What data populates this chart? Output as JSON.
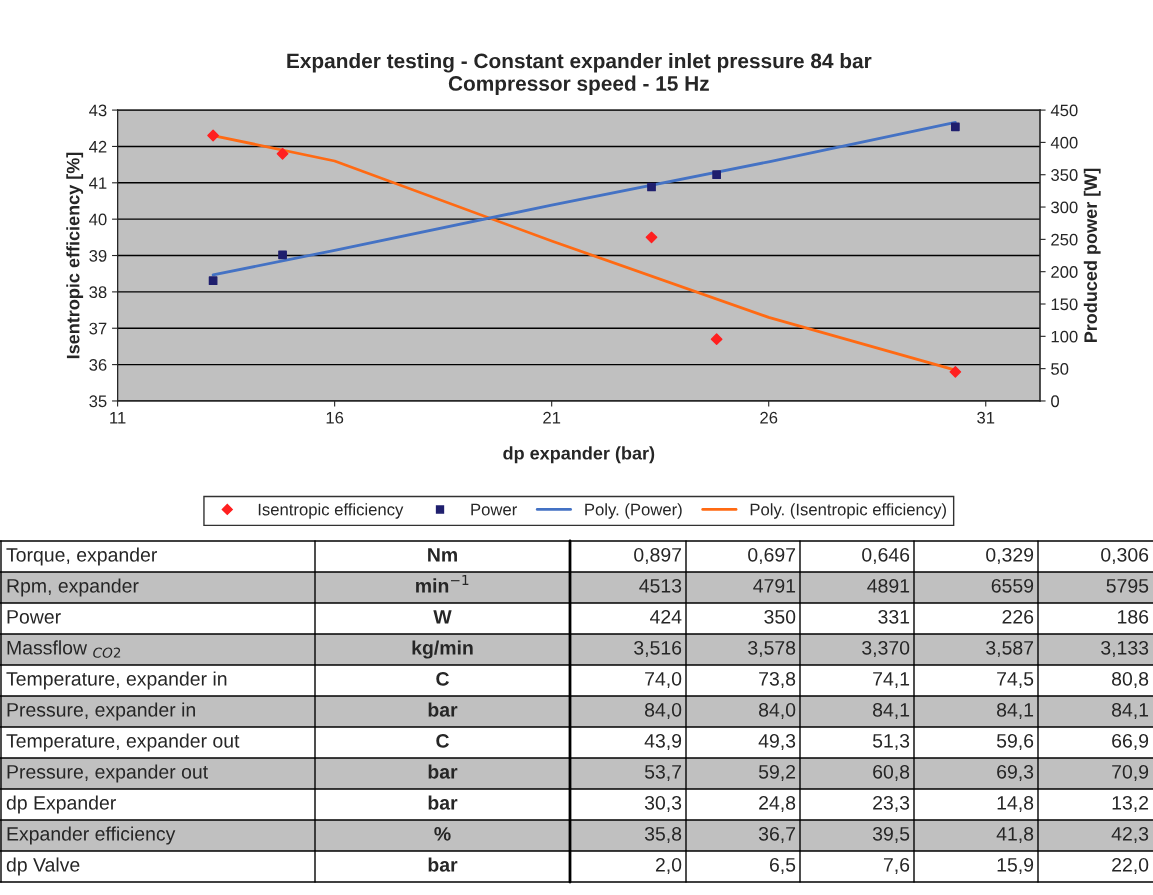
{
  "chart_data": {
    "type": "scatter",
    "title": "Expander testing - Constant expander inlet pressure 84 bar\nCompressor speed - 15 Hz",
    "xlabel": "dp expander (bar)",
    "ylabel": "Isentropic efficiency [%]",
    "y2label": "Produced power [W]",
    "xlim": [
      11,
      32.25
    ],
    "xticks": [
      11,
      16,
      21,
      26,
      31
    ],
    "ylim": [
      35,
      43
    ],
    "yticks": [
      35,
      36,
      37,
      38,
      39,
      40,
      41,
      42,
      43
    ],
    "y2lim": [
      0,
      450
    ],
    "y2ticks": [
      0,
      50,
      100,
      150,
      200,
      250,
      300,
      350,
      400,
      450
    ],
    "grid": "y",
    "legend": "bottom",
    "series": [
      {
        "name": "Isentropic efficiency",
        "marker": "diamond",
        "color": "#ff2020",
        "x": [
          13.2,
          14.8,
          23.3,
          24.8,
          30.3
        ],
        "values": [
          42.3,
          41.8,
          39.5,
          36.7,
          35.8
        ]
      },
      {
        "name": "Power",
        "marker": "square",
        "color": "#1f1f6e",
        "axis": "y2",
        "x": [
          13.2,
          14.8,
          23.3,
          24.8,
          30.3
        ],
        "values": [
          186,
          226,
          331,
          350,
          424
        ]
      },
      {
        "name": "Poly. (Power)",
        "type": "line",
        "marker": "none",
        "color": "#4472c4",
        "axis": "y2",
        "x": [
          13.2,
          16,
          21,
          26,
          30.3
        ],
        "values": [
          195,
          233,
          303,
          370,
          431
        ]
      },
      {
        "name": "Poly. (Isentropic efficiency)",
        "type": "line",
        "marker": "none",
        "color": "#ff6a13",
        "x": [
          13.2,
          16,
          21,
          26,
          30.3
        ],
        "values": [
          42.3,
          41.6,
          39.4,
          37.3,
          35.85
        ]
      }
    ],
    "annotations": [
      "Torque, expander",
      "Nm",
      "0,897",
      "0,697",
      "0,646",
      "0,329",
      "0,306",
      "Rpm, expander",
      "min$^{−1}$",
      "4513",
      "4791",
      "4891",
      "6559",
      "5795",
      "Power",
      "W",
      "424",
      "350",
      "331",
      "226",
      "186",
      "Massflow $_{CO2}$",
      "kg/min",
      "3,516",
      "3,578",
      "3,370",
      "3,587",
      "3,133",
      "Temperature, expander in",
      "C",
      "74,0",
      "73,8",
      "74,1",
      "74,5",
      "80,8",
      "Pressure, expander in",
      "bar",
      "84,0",
      "84,0",
      "84,1",
      "84,1",
      "84,1",
      "Temperature, expander out",
      "C",
      "43,9",
      "49,3",
      "51,3",
      "59,6",
      "66,9",
      "Pressure, expander out",
      "bar",
      "53,7",
      "59,2",
      "60,8",
      "69,3",
      "70,9",
      "dp Expander",
      "bar",
      "30,3",
      "24,8",
      "23,3",
      "14,8",
      "13,2",
      "Expander efficiency",
      "%",
      "35,8",
      "36,7",
      "39,5",
      "41,8",
      "42,3",
      "dp Valve",
      "bar",
      "2,0",
      "6,5",
      "7,6",
      "15,9",
      "22,0"
    ]
  }
}
